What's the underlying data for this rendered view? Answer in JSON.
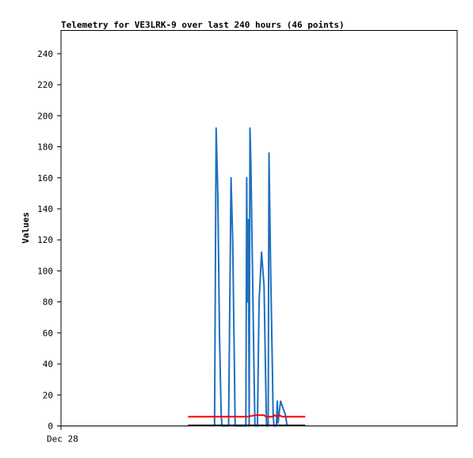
{
  "chart_data": {
    "type": "line",
    "title": "Telemetry for VE3LRK-9 over last 240 hours (46 points)",
    "xlabel": "",
    "ylabel": "Values",
    "xlim": [
      0,
      240
    ],
    "ylim": [
      0,
      255
    ],
    "y_ticks": [
      0,
      20,
      40,
      60,
      80,
      100,
      120,
      140,
      160,
      180,
      200,
      220,
      240
    ],
    "x_ticks": [
      {
        "x": 0,
        "label": "Dec 28"
      }
    ],
    "grid": false,
    "legend": "none",
    "series": [
      {
        "color": "#1f6fc0",
        "points": [
          [
            93,
            0
          ],
          [
            94,
            192
          ],
          [
            95,
            150
          ],
          [
            96,
            60
          ],
          [
            97,
            8
          ],
          [
            97.5,
            0
          ],
          [
            101.5,
            0
          ],
          [
            103,
            160
          ],
          [
            104,
            120
          ],
          [
            105,
            40
          ],
          [
            105.5,
            0
          ],
          [
            112,
            0
          ],
          [
            112.5,
            160
          ],
          [
            113,
            80
          ],
          [
            113.5,
            133
          ],
          [
            114,
            0
          ],
          [
            114.5,
            192
          ],
          [
            115,
            170
          ],
          [
            116,
            100
          ],
          [
            117,
            30
          ],
          [
            117.5,
            0
          ],
          [
            119,
            0
          ],
          [
            120,
            80
          ],
          [
            121.5,
            112
          ],
          [
            123,
            90
          ],
          [
            124,
            30
          ],
          [
            124.5,
            0
          ],
          [
            125.5,
            0
          ],
          [
            126,
            176
          ],
          [
            127,
            100
          ],
          [
            128,
            40
          ],
          [
            128.5,
            8
          ],
          [
            129,
            0
          ],
          [
            130.5,
            0
          ],
          [
            131,
            16
          ],
          [
            131.5,
            2
          ],
          [
            133,
            16
          ],
          [
            136,
            7
          ],
          [
            137,
            0
          ]
        ]
      },
      {
        "color": "#ff0000",
        "points": [
          [
            77,
            6
          ],
          [
            103,
            6
          ],
          [
            113,
            6
          ],
          [
            118,
            7
          ],
          [
            120,
            7
          ],
          [
            123,
            7
          ],
          [
            124,
            6
          ],
          [
            128,
            6
          ],
          [
            129,
            7
          ],
          [
            131,
            6
          ],
          [
            132,
            7
          ],
          [
            134,
            6
          ],
          [
            137,
            6
          ],
          [
            148,
            6
          ]
        ]
      },
      {
        "color": "#000000",
        "points": [
          [
            77,
            0.4
          ],
          [
            148,
            0.4
          ]
        ]
      }
    ]
  }
}
